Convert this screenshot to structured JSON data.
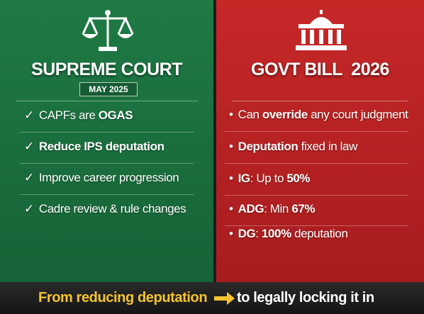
{
  "left": {
    "title": "SUPREME COURT",
    "subtitle": "MAY 2025",
    "marker": "✓",
    "items": [
      [
        {
          "text": "CAPFs are "
        },
        {
          "text": "OGAS",
          "bold": true
        }
      ],
      [
        {
          "text": "Reduce IPS deputation",
          "bold": true
        }
      ],
      [
        {
          "text": "Improve career progression"
        }
      ],
      [
        {
          "text": "Cadre review & rule changes"
        }
      ]
    ]
  },
  "right": {
    "title": "GOVT BILL  2026",
    "marker": "•",
    "items": [
      [
        {
          "text": "Can "
        },
        {
          "text": "override",
          "bold": true
        },
        {
          "text": " any court judgment"
        }
      ],
      [
        {
          "text": "Deputation",
          "bold": true
        },
        {
          "text": " fixed in law"
        }
      ],
      [
        {
          "text": "IG",
          "bold": true
        },
        {
          "text": ": Up to "
        },
        {
          "text": "50%",
          "bold": true
        }
      ],
      [
        {
          "text": "ADG",
          "bold": true
        },
        {
          "text": ": Min "
        },
        {
          "text": "67%",
          "bold": true
        }
      ],
      [
        {
          "text": "DG",
          "bold": true
        },
        {
          "text": ": "
        },
        {
          "text": "100%",
          "bold": true
        },
        {
          "text": " deputation"
        }
      ]
    ]
  },
  "footer": {
    "from": "From reducing deputation",
    "to": "to legally locking it in"
  }
}
